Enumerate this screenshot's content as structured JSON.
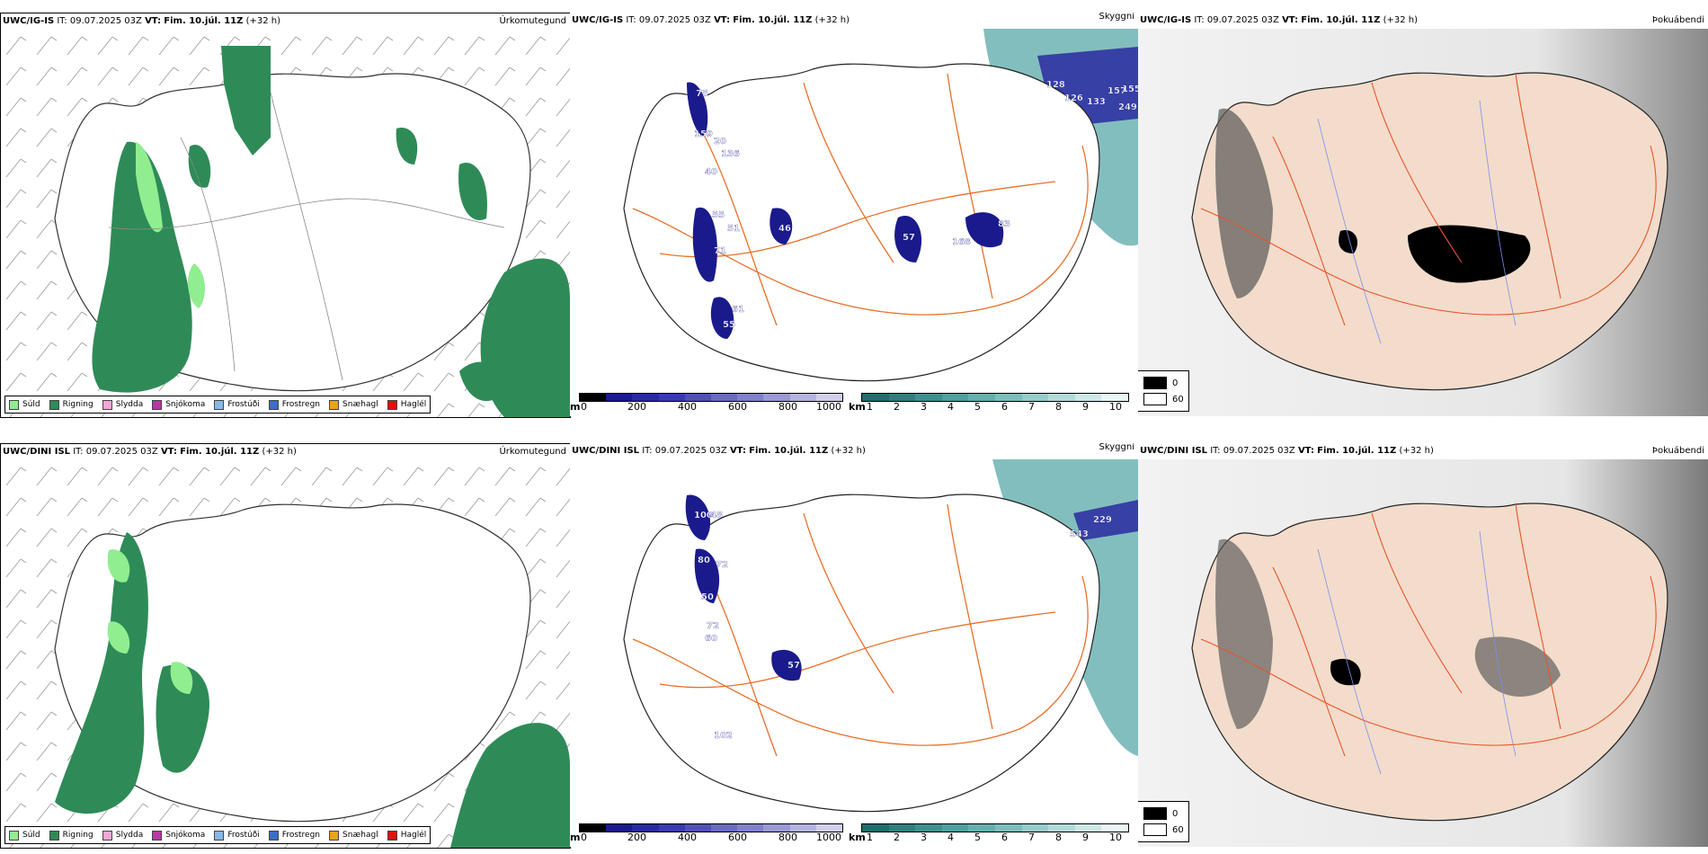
{
  "rows": [
    {
      "id": "ig",
      "model": "UWC/IG-IS",
      "it_label": "IT:",
      "it_value": "09.07.2025 03Z",
      "vt_label": "VT:",
      "vt_value": "Fim. 10.júl. 11Z",
      "lead": "(+32 h)",
      "titles": [
        "Úrkomutegund",
        "Skyggni",
        "Þokuábendi"
      ],
      "cloud_labels": [
        "75",
        "159",
        "20",
        "136",
        "40",
        "55",
        "51",
        "71",
        "46",
        "57",
        "168",
        "83",
        "61",
        "55",
        "128",
        "126",
        "133",
        "157",
        "155",
        "249"
      ]
    },
    {
      "id": "dini",
      "model": "UWC/DINI ISL",
      "it_label": "IT:",
      "it_value": "09.07.2025 03Z",
      "vt_label": "VT:",
      "vt_value": "Fim. 10.júl. 11Z",
      "lead": "(+32 h)",
      "titles": [
        "Úrkomutegund",
        "Skyggni",
        "Þokuábendi"
      ],
      "cloud_labels": [
        "100",
        "48",
        "80",
        "72",
        "50",
        "72",
        "60",
        "57",
        "102",
        "229",
        "543"
      ]
    }
  ],
  "precip_legend": [
    {
      "label": "Súld",
      "color": "#90ee90"
    },
    {
      "label": "Rigning",
      "color": "#2e8b57"
    },
    {
      "label": "Slydda",
      "color": "#f4a6d7"
    },
    {
      "label": "Snjókoma",
      "color": "#b23aa0"
    },
    {
      "label": "Frostúði",
      "color": "#87b8e8"
    },
    {
      "label": "Frostregn",
      "color": "#3a6fc4"
    },
    {
      "label": "Snæhagl",
      "color": "#f0a020"
    },
    {
      "label": "Haglél",
      "color": "#e01010"
    }
  ],
  "cloudbase_scale": {
    "unit": "m",
    "ticks": [
      "0",
      "200",
      "400",
      "600",
      "800",
      "1000"
    ],
    "colors": [
      "#000000",
      "#1a1a8c",
      "#2a2aa0",
      "#3a3ab0",
      "#5050b8",
      "#6a6ac4",
      "#8080cc",
      "#9a9ad6",
      "#b4b4e0",
      "#d0d0ec"
    ]
  },
  "visibility_scale": {
    "unit": "km",
    "ticks": [
      "1",
      "2",
      "3",
      "4",
      "5",
      "6",
      "7",
      "8",
      "9",
      "10"
    ],
    "colors": [
      "#1e6e6e",
      "#2e8080",
      "#3e9090",
      "#50a0a0",
      "#64b0ae",
      "#7cbebc",
      "#96cccb",
      "#b2dad9",
      "#cee8e7",
      "#eaf5f5"
    ]
  },
  "fog_legend": {
    "items": [
      {
        "label": "0",
        "color": "#000000"
      },
      {
        "label": "60",
        "color": "#ffffff"
      }
    ]
  },
  "colors": {
    "land_fog": "#f3dccb",
    "roads": "#e8702a",
    "rivers": "#7d8df0",
    "rain": "#2e8b57",
    "drizzle": "#90ee90",
    "sea_vis": "#5aa8a8"
  }
}
